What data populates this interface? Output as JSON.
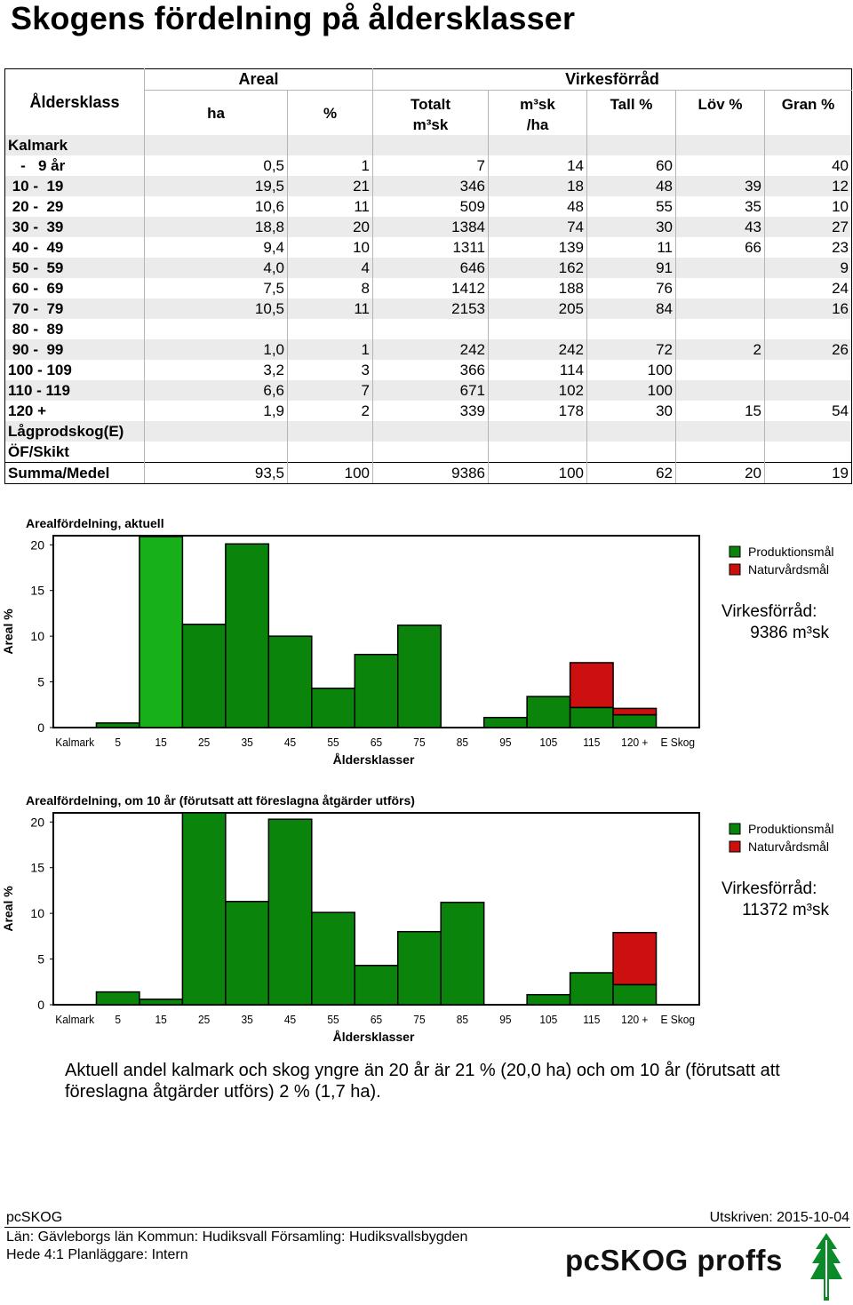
{
  "title": "Skogens fördelning på åldersklasser",
  "table": {
    "h_aldersklass": "Åldersklass",
    "h_areal": "Areal",
    "h_virkesforrad": "Virkesförråd",
    "h_ha": "ha",
    "h_pct": "%",
    "h_totalt1": "Totalt",
    "h_totalt2": "m³sk",
    "h_m3sk1": "m³sk",
    "h_m3sk2": "/ha",
    "h_tall": "Tall %",
    "h_lov": "Löv %",
    "h_gran": "Gran %",
    "rows": [
      {
        "label": "Kalmark",
        "ha": "",
        "pct": "",
        "tot": "",
        "perha": "",
        "tall": "",
        "lov": "",
        "gran": ""
      },
      {
        "label": "   -   9 år",
        "ha": "0,5",
        "pct": "1",
        "tot": "7",
        "perha": "14",
        "tall": "60",
        "lov": "",
        "gran": "40"
      },
      {
        "label": " 10 -  19",
        "ha": "19,5",
        "pct": "21",
        "tot": "346",
        "perha": "18",
        "tall": "48",
        "lov": "39",
        "gran": "12"
      },
      {
        "label": " 20 -  29",
        "ha": "10,6",
        "pct": "11",
        "tot": "509",
        "perha": "48",
        "tall": "55",
        "lov": "35",
        "gran": "10"
      },
      {
        "label": " 30 -  39",
        "ha": "18,8",
        "pct": "20",
        "tot": "1384",
        "perha": "74",
        "tall": "30",
        "lov": "43",
        "gran": "27"
      },
      {
        "label": " 40 -  49",
        "ha": "9,4",
        "pct": "10",
        "tot": "1311",
        "perha": "139",
        "tall": "11",
        "lov": "66",
        "gran": "23"
      },
      {
        "label": " 50 -  59",
        "ha": "4,0",
        "pct": "4",
        "tot": "646",
        "perha": "162",
        "tall": "91",
        "lov": "",
        "gran": "9"
      },
      {
        "label": " 60 -  69",
        "ha": "7,5",
        "pct": "8",
        "tot": "1412",
        "perha": "188",
        "tall": "76",
        "lov": "",
        "gran": "24"
      },
      {
        "label": " 70 -  79",
        "ha": "10,5",
        "pct": "11",
        "tot": "2153",
        "perha": "205",
        "tall": "84",
        "lov": "",
        "gran": "16"
      },
      {
        "label": " 80 -  89",
        "ha": "",
        "pct": "",
        "tot": "",
        "perha": "",
        "tall": "",
        "lov": "",
        "gran": ""
      },
      {
        "label": " 90 -  99",
        "ha": "1,0",
        "pct": "1",
        "tot": "242",
        "perha": "242",
        "tall": "72",
        "lov": "2",
        "gran": "26"
      },
      {
        "label": "100 - 109",
        "ha": "3,2",
        "pct": "3",
        "tot": "366",
        "perha": "114",
        "tall": "100",
        "lov": "",
        "gran": ""
      },
      {
        "label": "110 - 119",
        "ha": "6,6",
        "pct": "7",
        "tot": "671",
        "perha": "102",
        "tall": "100",
        "lov": "",
        "gran": ""
      },
      {
        "label": "120 +",
        "ha": "1,9",
        "pct": "2",
        "tot": "339",
        "perha": "178",
        "tall": "30",
        "lov": "15",
        "gran": "54"
      },
      {
        "label": "Lågprodskog(E)",
        "ha": "",
        "pct": "",
        "tot": "",
        "perha": "",
        "tall": "",
        "lov": "",
        "gran": ""
      },
      {
        "label": "ÖF/Skikt",
        "ha": "",
        "pct": "",
        "tot": "",
        "perha": "",
        "tall": "",
        "lov": "",
        "gran": ""
      }
    ],
    "sum": {
      "label": "Summa/Medel",
      "ha": "93,5",
      "pct": "100",
      "tot": "9386",
      "perha": "100",
      "tall": "62",
      "lov": "20",
      "gran": "19"
    }
  },
  "chart_data": [
    {
      "type": "bar",
      "title": "Arealfördelning, aktuell",
      "xlabel": "Åldersklasser",
      "ylabel": "Areal %",
      "ylim": [
        0,
        21
      ],
      "yticks": [
        0,
        5,
        10,
        15,
        20
      ],
      "categories": [
        "Kalmark",
        "5",
        "15",
        "25",
        "35",
        "45",
        "55",
        "65",
        "75",
        "85",
        "95",
        "105",
        "115",
        "120 +",
        "E Skog"
      ],
      "series": [
        {
          "name": "Produktionsmål",
          "color": "#0b840b",
          "values": [
            0,
            0.5,
            20.9,
            11.3,
            20.1,
            10.0,
            4.3,
            8.0,
            11.2,
            0,
            1.1,
            3.4,
            2.2,
            1.4,
            0
          ]
        },
        {
          "name": "Naturvårdsmål",
          "color": "#cc1010",
          "values": [
            0,
            0,
            0,
            0,
            0,
            0,
            0,
            0,
            0,
            0,
            0,
            0,
            4.9,
            0.7,
            0
          ]
        }
      ],
      "highlight_color": "#18b018",
      "highlight_index": 2,
      "side_label": "Virkesförråd:",
      "side_value": "9386 m³sk",
      "legend_position": "right"
    },
    {
      "type": "bar",
      "title": "Arealfördelning, om  10  år  (förutsatt  att  föreslagna  åtgärder  utförs)",
      "xlabel": "Åldersklasser",
      "ylabel": "Areal %",
      "ylim": [
        0,
        21
      ],
      "yticks": [
        0,
        5,
        10,
        15,
        20
      ],
      "categories": [
        "Kalmark",
        "5",
        "15",
        "25",
        "35",
        "45",
        "55",
        "65",
        "75",
        "85",
        "95",
        "105",
        "115",
        "120 +",
        "E Skog"
      ],
      "series": [
        {
          "name": "Produktionsmål",
          "color": "#0b840b",
          "values": [
            0,
            1.4,
            0.6,
            21.0,
            11.3,
            20.3,
            10.1,
            4.3,
            8.0,
            11.2,
            0,
            1.1,
            3.5,
            2.2,
            0
          ]
        },
        {
          "name": "Naturvårdsmål",
          "color": "#cc1010",
          "values": [
            0,
            0,
            0,
            0,
            0,
            0,
            0,
            0,
            0,
            0,
            0,
            0,
            0,
            5.7,
            0
          ]
        }
      ],
      "side_label": "Virkesförråd:",
      "side_value": "11372 m³sk",
      "legend_position": "right"
    }
  ],
  "note_line1": "Aktuell andel kalmark och skog yngre än 20 år är 21 % (20,0 ha) och om 10 år (förutsatt att",
  "note_line2": "föreslagna åtgärder utförs) 2 % (1,7 ha).",
  "footer": {
    "app": "pcSKOG",
    "printed": "Utskriven: 2015-10-04",
    "line1": "Län: Gävleborgs län   Kommun: Hudiksvall   Församling: Hudiksvallsbygden",
    "line2": "Hede 4:1 Planläggare: Intern",
    "logo": "pcSKOG proffs"
  }
}
